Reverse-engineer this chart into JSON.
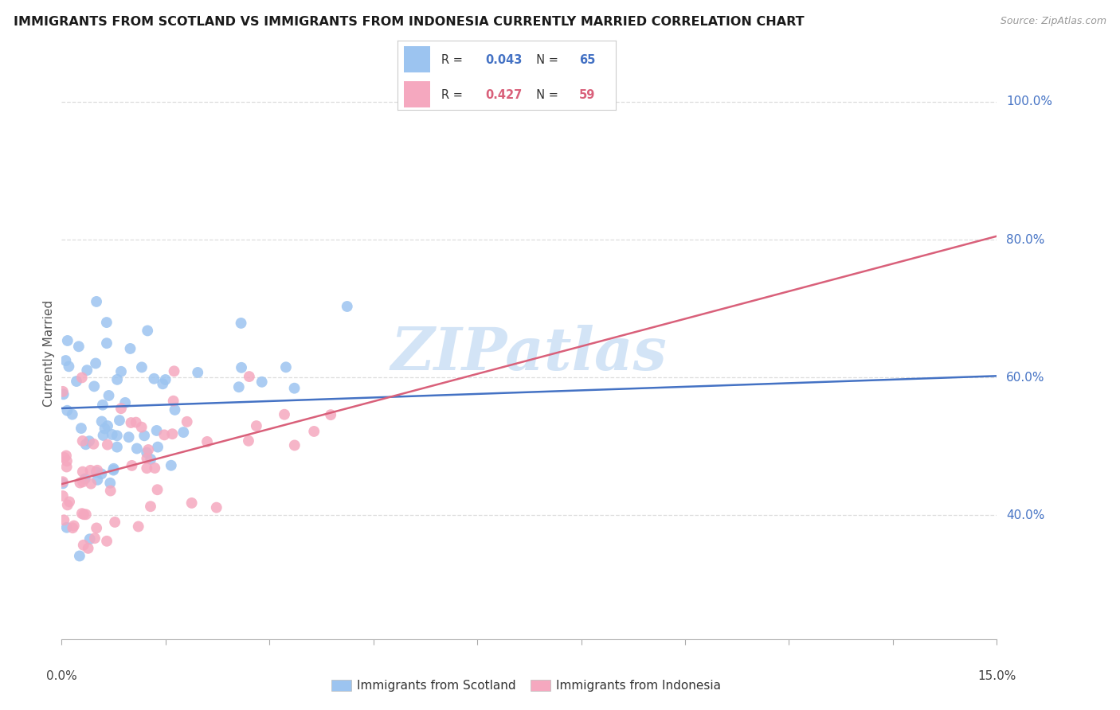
{
  "title": "IMMIGRANTS FROM SCOTLAND VS IMMIGRANTS FROM INDONESIA CURRENTLY MARRIED CORRELATION CHART",
  "source": "Source: ZipAtlas.com",
  "ylabel": "Currently Married",
  "xmin": 0.0,
  "xmax": 0.15,
  "ymin": 0.22,
  "ymax": 1.05,
  "scotland_R": 0.043,
  "scotland_N": 65,
  "indonesia_R": 0.427,
  "indonesia_N": 59,
  "scotland_color": "#9cc4f0",
  "indonesia_color": "#f5a8bf",
  "scotland_line_color": "#4472c4",
  "indonesia_line_color": "#d9607a",
  "right_label_color": "#4472c4",
  "watermark": "ZIPatlas",
  "watermark_color": "#cce0f5",
  "scotland_line_y0": 0.555,
  "scotland_line_y1": 0.602,
  "indonesia_line_y0": 0.445,
  "indonesia_line_y1": 0.805,
  "ytick_vals": [
    0.4,
    0.6,
    0.8,
    1.0
  ],
  "ytick_labels": [
    "40.0%",
    "60.0%",
    "80.0%",
    "100.0%"
  ],
  "legend_R_color": "#4472c4",
  "legend_R2_color": "#d9607a"
}
